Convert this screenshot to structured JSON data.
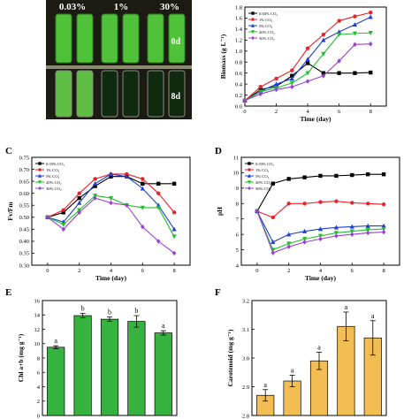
{
  "photo": {
    "column_labels": [
      "0.03%",
      "1%",
      "30%"
    ],
    "row_labels": [
      "0d",
      "8d"
    ]
  },
  "colors": {
    "air": "#000000",
    "co2_1": "#e8222b",
    "co2_5": "#1f3fd0",
    "co2_20": "#1fbf2a",
    "co2_30": "#9b3fd0",
    "bar_green": "#36b23f",
    "bar_yellow": "#f2bd52",
    "tube_green": "#4fc23a",
    "tube_dark": "#102a10"
  },
  "chart_data": [
    {
      "id": "B",
      "panel_letter": "",
      "type": "line",
      "xlabel": "Time (day)",
      "ylabel": "Biomass (g L⁻¹)",
      "xlim": [
        0,
        9
      ],
      "ylim": [
        0,
        1.8
      ],
      "xticks": [
        "0",
        "2",
        "4",
        "6",
        "8"
      ],
      "xtick_values": [
        0,
        2,
        4,
        6,
        8
      ],
      "yticks": [
        "0.0",
        "0.2",
        "0.4",
        "0.6",
        "0.8",
        "1.0",
        "1.2",
        "1.4",
        "1.6",
        "1.8"
      ],
      "ytick_values": [
        0,
        0.2,
        0.4,
        0.6,
        0.8,
        1.0,
        1.2,
        1.4,
        1.6,
        1.8
      ],
      "legend": "top-left",
      "series": [
        {
          "name": "0.03% CO₂",
          "color": "#000000",
          "marker": "square",
          "x": [
            0,
            1,
            2,
            3,
            4,
            5,
            6,
            7,
            8
          ],
          "y": [
            0.1,
            0.3,
            0.36,
            0.55,
            0.78,
            0.6,
            0.6,
            0.6,
            0.61
          ]
        },
        {
          "name": "1% CO₂",
          "color": "#e8222b",
          "marker": "circle",
          "x": [
            0,
            1,
            2,
            3,
            4,
            5,
            6,
            7,
            8
          ],
          "y": [
            0.1,
            0.35,
            0.5,
            0.65,
            1.05,
            1.3,
            1.55,
            1.63,
            1.7
          ]
        },
        {
          "name": "5% CO₂",
          "color": "#1f3fd0",
          "marker": "triangle",
          "x": [
            0,
            1,
            2,
            3,
            4,
            5,
            6,
            7,
            8
          ],
          "y": [
            0.1,
            0.27,
            0.4,
            0.5,
            0.85,
            1.2,
            1.35,
            1.48,
            1.62
          ]
        },
        {
          "name": "20% CO₂",
          "color": "#1fbf2a",
          "marker": "tri-down",
          "x": [
            0,
            1,
            2,
            3,
            4,
            5,
            6,
            7,
            8
          ],
          "y": [
            0.1,
            0.26,
            0.33,
            0.42,
            0.6,
            0.95,
            1.3,
            1.32,
            1.33
          ]
        },
        {
          "name": "30% CO₂",
          "color": "#9b3fd0",
          "marker": "diamond",
          "x": [
            0,
            1,
            2,
            3,
            4,
            5,
            6,
            7,
            8
          ],
          "y": [
            0.1,
            0.22,
            0.3,
            0.35,
            0.45,
            0.55,
            0.82,
            1.12,
            1.13
          ]
        }
      ]
    },
    {
      "id": "C",
      "panel_letter": "C",
      "type": "line",
      "xlabel": "Time (day)",
      "ylabel": "Fv/Fm",
      "xlim": [
        -1,
        9
      ],
      "ylim": [
        0.3,
        0.75
      ],
      "xticks": [
        "0",
        "2",
        "4",
        "6",
        "8"
      ],
      "xtick_values": [
        0,
        2,
        4,
        6,
        8
      ],
      "yticks": [
        "0.30",
        "0.35",
        "0.40",
        "0.45",
        "0.50",
        "0.55",
        "0.60",
        "0.65",
        "0.70",
        "0.75"
      ],
      "ytick_values": [
        0.3,
        0.35,
        0.4,
        0.45,
        0.5,
        0.55,
        0.6,
        0.65,
        0.7,
        0.75
      ],
      "legend": "top-left",
      "series": [
        {
          "name": "0.03% CO₂",
          "color": "#000000",
          "marker": "square",
          "x": [
            0,
            1,
            2,
            3,
            4,
            5,
            6,
            7,
            8
          ],
          "y": [
            0.5,
            0.52,
            0.58,
            0.63,
            0.67,
            0.67,
            0.64,
            0.64,
            0.64
          ]
        },
        {
          "name": "1% CO₂",
          "color": "#e8222b",
          "marker": "circle",
          "x": [
            0,
            1,
            2,
            3,
            4,
            5,
            6,
            7,
            8
          ],
          "y": [
            0.5,
            0.53,
            0.6,
            0.66,
            0.68,
            0.68,
            0.66,
            0.6,
            0.52
          ]
        },
        {
          "name": "5% CO₂",
          "color": "#1f3fd0",
          "marker": "triangle",
          "x": [
            0,
            1,
            2,
            3,
            4,
            5,
            6,
            7,
            8
          ],
          "y": [
            0.5,
            0.48,
            0.56,
            0.64,
            0.68,
            0.67,
            0.62,
            0.55,
            0.45
          ]
        },
        {
          "name": "20% CO₂",
          "color": "#1fbf2a",
          "marker": "tri-down",
          "x": [
            0,
            1,
            2,
            3,
            4,
            5,
            6,
            7,
            8
          ],
          "y": [
            0.5,
            0.47,
            0.53,
            0.59,
            0.58,
            0.55,
            0.54,
            0.54,
            0.42
          ]
        },
        {
          "name": "30% CO₂",
          "color": "#9b3fd0",
          "marker": "diamond",
          "x": [
            0,
            1,
            2,
            3,
            4,
            5,
            6,
            7,
            8
          ],
          "y": [
            0.5,
            0.45,
            0.52,
            0.58,
            0.56,
            0.55,
            0.46,
            0.4,
            0.35
          ]
        }
      ]
    },
    {
      "id": "D",
      "panel_letter": "D",
      "type": "line",
      "xlabel": "Time (day)",
      "ylabel": "pH",
      "xlim": [
        -1,
        9
      ],
      "ylim": [
        4,
        11
      ],
      "xticks": [
        "0",
        "2",
        "4",
        "6",
        "8"
      ],
      "xtick_values": [
        0,
        2,
        4,
        6,
        8
      ],
      "yticks": [
        "4",
        "5",
        "6",
        "7",
        "8",
        "9",
        "10",
        "11"
      ],
      "ytick_values": [
        4,
        5,
        6,
        7,
        8,
        9,
        10,
        11
      ],
      "legend": "top-left",
      "series": [
        {
          "name": "0.03% CO₂",
          "color": "#000000",
          "marker": "square",
          "x": [
            0,
            1,
            2,
            3,
            4,
            5,
            6,
            7,
            8
          ],
          "y": [
            7.5,
            9.3,
            9.6,
            9.7,
            9.8,
            9.8,
            9.85,
            9.9,
            9.9
          ]
        },
        {
          "name": "1% CO₂",
          "color": "#e8222b",
          "marker": "circle",
          "x": [
            0,
            1,
            2,
            3,
            4,
            5,
            6,
            7,
            8
          ],
          "y": [
            7.5,
            7.1,
            8.0,
            8.0,
            8.1,
            8.15,
            8.05,
            8.0,
            7.95
          ]
        },
        {
          "name": "5% CO₂",
          "color": "#1f3fd0",
          "marker": "triangle",
          "x": [
            0,
            1,
            2,
            3,
            4,
            5,
            6,
            7,
            8
          ],
          "y": [
            7.5,
            5.5,
            6.0,
            6.2,
            6.35,
            6.45,
            6.5,
            6.55,
            6.55
          ]
        },
        {
          "name": "20% CO₂",
          "color": "#1fbf2a",
          "marker": "tri-down",
          "x": [
            0,
            1,
            2,
            3,
            4,
            5,
            6,
            7,
            8
          ],
          "y": [
            7.5,
            5.0,
            5.4,
            5.7,
            5.9,
            6.1,
            6.2,
            6.3,
            6.35
          ]
        },
        {
          "name": "30% CO₂",
          "color": "#9b3fd0",
          "marker": "diamond",
          "x": [
            0,
            1,
            2,
            3,
            4,
            5,
            6,
            7,
            8
          ],
          "y": [
            7.5,
            4.8,
            5.2,
            5.5,
            5.7,
            5.9,
            6.0,
            6.1,
            6.15
          ]
        }
      ]
    },
    {
      "id": "E",
      "panel_letter": "E",
      "type": "bar",
      "xlabel": "",
      "ylabel": "Chl a+b (mg g⁻¹)",
      "ylim": [
        0,
        16
      ],
      "yticks": [
        "0",
        "2",
        "4",
        "6",
        "8",
        "10",
        "12",
        "14",
        "16"
      ],
      "ytick_values": [
        0,
        2,
        4,
        6,
        8,
        10,
        12,
        14,
        16
      ],
      "categories": [
        "",
        "",
        "",
        "",
        ""
      ],
      "values": [
        9.5,
        13.9,
        13.4,
        13.1,
        11.5
      ],
      "errors": [
        0.2,
        0.3,
        0.3,
        0.8,
        0.3
      ],
      "letters": [
        "a",
        "b",
        "b",
        "b",
        "a"
      ],
      "color": "#36b23f"
    },
    {
      "id": "F",
      "panel_letter": "F",
      "type": "bar",
      "xlabel": "",
      "ylabel": "Carotenoid (mg g⁻¹)",
      "ylim": [
        2.8,
        3.2
      ],
      "yticks": [
        "2.8",
        "2.9",
        "3.0",
        "3.1",
        "3.2"
      ],
      "ytick_values": [
        2.8,
        2.9,
        3.0,
        3.1,
        3.2
      ],
      "categories": [
        "",
        "",
        "",
        "",
        ""
      ],
      "values": [
        2.87,
        2.92,
        2.99,
        3.11,
        3.07
      ],
      "errors": [
        0.02,
        0.02,
        0.03,
        0.05,
        0.06
      ],
      "letters": [
        "a",
        "a",
        "a",
        "a",
        "a"
      ],
      "color": "#f2bd52"
    }
  ]
}
